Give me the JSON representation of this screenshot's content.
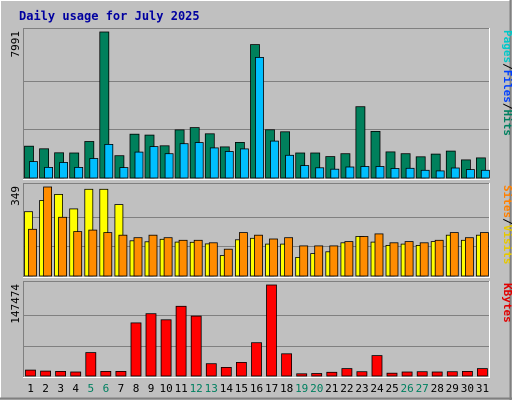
{
  "chart_data": {
    "type": "bar",
    "title": "Daily usage for July 2025",
    "categories": [
      "1",
      "2",
      "3",
      "4",
      "5",
      "6",
      "7",
      "8",
      "9",
      "10",
      "11",
      "12",
      "13",
      "14",
      "15",
      "16",
      "17",
      "18",
      "19",
      "20",
      "21",
      "22",
      "23",
      "24",
      "25",
      "26",
      "27",
      "28",
      "29",
      "30",
      "31"
    ],
    "weekend_days": [
      "5",
      "6",
      "12",
      "13",
      "19",
      "20",
      "26",
      "27"
    ],
    "panels": [
      {
        "name": "hits",
        "ymax_label": "7991",
        "ymax": 7991,
        "legend": [
          "Pages",
          "/",
          "Files",
          "/",
          "Hits"
        ],
        "legend_colors": [
          "#00c8c8",
          "#000000",
          "#0040ff",
          "#000000",
          "#008060"
        ],
        "series": [
          {
            "name": "Hits",
            "color": "#00805c",
            "values": [
              1740,
              1600,
              1380,
              1370,
              2000,
              7991,
              1220,
              2400,
              2350,
              1760,
              2630,
              2760,
              2420,
              1700,
              1950,
              7300,
              2640,
              2530,
              1370,
              1370,
              1170,
              1330,
              3900,
              2550,
              1430,
              1330,
              1160,
              1310,
              1470,
              990,
              1100
            ]
          },
          {
            "name": "Files",
            "color": "#00bfff",
            "values": [
              900,
              580,
              850,
              580,
              1070,
              1840,
              570,
              1420,
              1720,
              1330,
              1880,
              1940,
              1650,
              1450,
              1590,
              6600,
              2020,
              1240,
              680,
              560,
              480,
              600,
              630,
              630,
              520,
              530,
              420,
              390,
              550,
              460,
              420
            ]
          },
          {
            "name": "Pages",
            "color": "#00c8c8",
            "values": [
              0,
              0,
              0,
              0,
              0,
              0,
              0,
              0,
              0,
              0,
              0,
              0,
              0,
              0,
              0,
              0,
              0,
              0,
              0,
              0,
              0,
              0,
              0,
              0,
              0,
              0,
              0,
              0,
              0,
              0,
              0
            ]
          }
        ]
      },
      {
        "name": "visits",
        "ymax_label": "349",
        "ymax": 349,
        "legend": [
          "Sites",
          "/",
          "Visits"
        ],
        "legend_colors": [
          "#ff8000",
          "#000000",
          "#e6c800"
        ],
        "series": [
          {
            "name": "Visits",
            "color": "#ffff00",
            "values": [
              252,
              296,
              320,
              263,
              340,
              340,
              280,
              138,
              134,
              144,
              133,
              132,
              126,
              80,
              142,
              148,
              125,
              125,
              73,
              88,
              95,
              130,
              155,
              133,
              120,
              125,
              120,
              135,
              160,
              140,
              160
            ]
          },
          {
            "name": "Sites",
            "color": "#ff8c00",
            "values": [
              183,
              349,
              230,
              174,
              180,
              170,
              160,
              150,
              160,
              150,
              140,
              140,
              130,
              105,
              170,
              160,
              145,
              150,
              118,
              118,
              118,
              135,
              155,
              165,
              130,
              135,
              130,
              140,
              170,
              150,
              170
            ]
          }
        ]
      },
      {
        "name": "kbytes",
        "ymax_label": "147474",
        "ymax": 147474,
        "legend": [
          "KBytes"
        ],
        "legend_colors": [
          "#e00000"
        ],
        "series": [
          {
            "name": "KBytes",
            "color": "#ff0000",
            "values": [
              9500,
              8000,
              7500,
              6500,
              38000,
              7500,
              7500,
              86000,
              101000,
              91000,
              113000,
              97000,
              20000,
              14000,
              22000,
              54000,
              147474,
              36000,
              3500,
              4000,
              6000,
              12000,
              7000,
              33000,
              4500,
              6500,
              7000,
              6500,
              7000,
              7500,
              12000
            ]
          }
        ]
      }
    ]
  }
}
